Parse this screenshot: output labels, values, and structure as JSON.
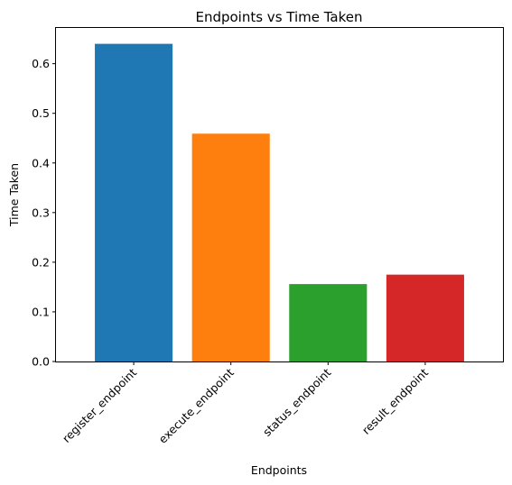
{
  "chart_data": {
    "type": "bar",
    "title": "Endpoints vs Time Taken",
    "xlabel": "Endpoints",
    "ylabel": "Time Taken",
    "categories": [
      "register_endpoint",
      "execute_endpoint",
      "status_endpoint",
      "result_endpoint"
    ],
    "values": [
      0.64,
      0.459,
      0.156,
      0.175
    ],
    "colors": [
      "#1f77b4",
      "#ff7f0e",
      "#2ca02c",
      "#d62728"
    ],
    "ylim": [
      0,
      0.672
    ],
    "yticks": [
      0.0,
      0.1,
      0.2,
      0.3,
      0.4,
      0.5,
      0.6
    ],
    "ytick_labels": [
      "0.0",
      "0.1",
      "0.2",
      "0.3",
      "0.4",
      "0.5",
      "0.6"
    ],
    "grid": false,
    "legend": "none",
    "xtick_rotation": 45
  }
}
